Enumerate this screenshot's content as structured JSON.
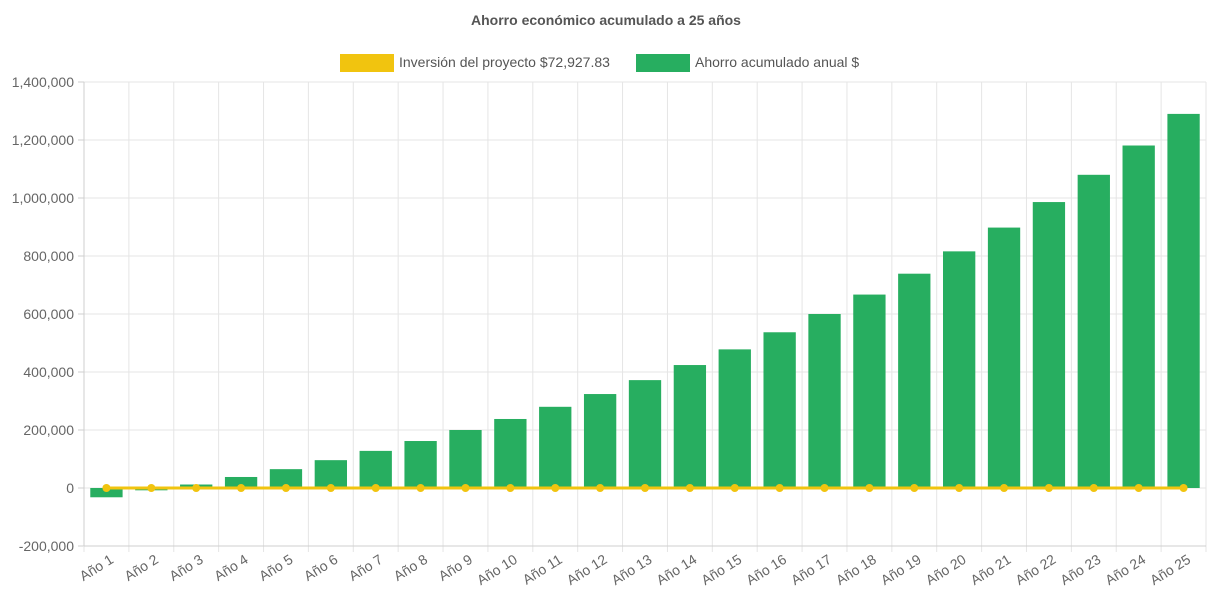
{
  "chart_data": {
    "type": "bar",
    "title": "Ahorro económico acumulado a 25 años",
    "xlabel": "",
    "ylabel": "",
    "categories": [
      "Año 1",
      "Año 2",
      "Año 3",
      "Año 4",
      "Año 5",
      "Año 6",
      "Año 7",
      "Año 8",
      "Año 9",
      "Año 10",
      "Año 11",
      "Año 12",
      "Año 13",
      "Año 14",
      "Año 15",
      "Año 16",
      "Año 17",
      "Año 18",
      "Año 19",
      "Año 20",
      "Año 21",
      "Año 22",
      "Año 23",
      "Año 24",
      "Año 25"
    ],
    "ylim": [
      -200000,
      1400000
    ],
    "yticks": [
      -200000,
      0,
      200000,
      400000,
      600000,
      800000,
      1000000,
      1200000,
      1400000
    ],
    "ytick_labels": [
      "-200,000",
      "0",
      "200,000",
      "400,000",
      "600,000",
      "800,000",
      "1,000,000",
      "1,200,000",
      "1,400,000"
    ],
    "grid": true,
    "legend_position": "top-center",
    "series": [
      {
        "name": "Inversión del proyecto $72,927.83",
        "type": "line",
        "color": "#f1c40f",
        "values": [
          0,
          0,
          0,
          0,
          0,
          0,
          0,
          0,
          0,
          0,
          0,
          0,
          0,
          0,
          0,
          0,
          0,
          0,
          0,
          0,
          0,
          0,
          0,
          0,
          0
        ]
      },
      {
        "name": "Ahorro acumulado anual $",
        "type": "bar",
        "color": "#27ae60",
        "values": [
          -32000,
          -8000,
          12000,
          38000,
          65000,
          96000,
          128000,
          162000,
          200000,
          238000,
          280000,
          324000,
          372000,
          424000,
          478000,
          537000,
          600000,
          667000,
          739000,
          816000,
          898000,
          986000,
          1080000,
          1181000,
          1290000
        ]
      }
    ]
  }
}
